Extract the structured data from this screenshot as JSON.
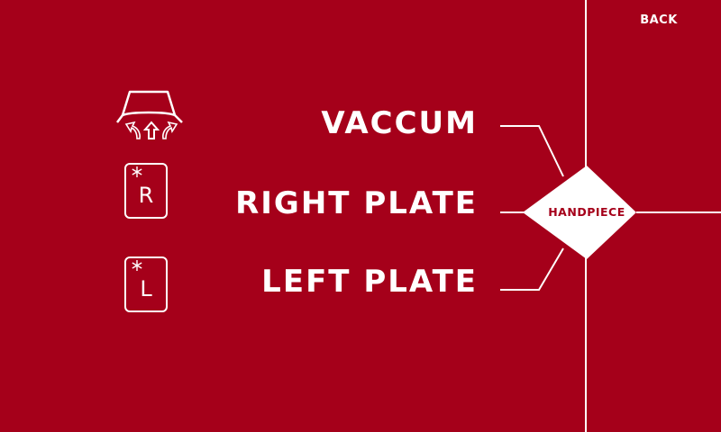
{
  "header": {
    "back_label": "BACK"
  },
  "modes": {
    "vacuum": {
      "label": "VACCUM",
      "icon": "vacuum-cup-icon"
    },
    "right_plate": {
      "label": "RIGHT PLATE",
      "icon_letter": "R",
      "icon": "cold-plate-icon"
    },
    "left_plate": {
      "label": "LEFT PLATE",
      "icon_letter": "L",
      "icon": "cold-plate-icon"
    }
  },
  "handpiece": {
    "label": "HANDPIECE"
  },
  "colors": {
    "background": "#a5001a",
    "foreground": "#ffffff"
  }
}
